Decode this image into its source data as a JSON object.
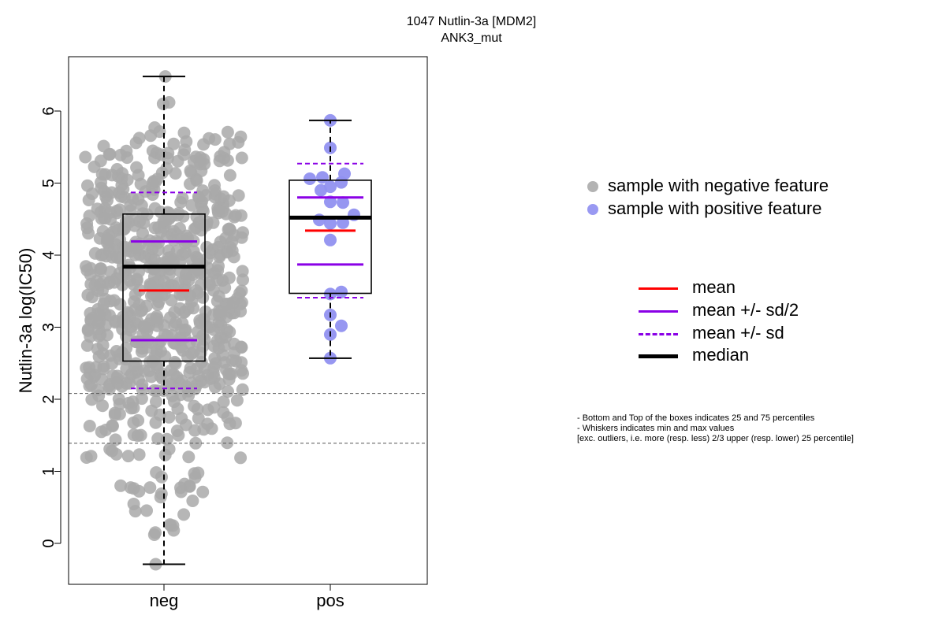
{
  "chart_data": {
    "type": "boxplot",
    "title": "1047 Nutlin-3a [MDM2]",
    "subtitle": "ANK3_mut",
    "xlabel": "",
    "ylabel": "Nutlin-3a log(IC50)",
    "ylim": [
      -0.57,
      7.05
    ],
    "yticks": [
      0,
      1,
      2,
      3,
      4,
      5,
      6
    ],
    "categories": [
      "neg",
      "pos"
    ],
    "reference_lines": [
      2.08,
      1.39
    ],
    "groups": [
      {
        "name": "neg",
        "color": "#a9a9a9",
        "min": -0.29,
        "q1": 2.53,
        "median": 3.84,
        "q3": 4.57,
        "max": 6.48,
        "mean": 3.51,
        "mean_minus_half_sd": 2.82,
        "mean_plus_half_sd": 4.19,
        "mean_minus_sd": 2.15,
        "mean_plus_sd": 4.87,
        "n": 750
      },
      {
        "name": "pos",
        "color": "#9191f0",
        "min": 2.57,
        "q1": 3.47,
        "median": 4.52,
        "q3": 5.04,
        "max": 5.87,
        "mean": 4.34,
        "mean_minus_half_sd": 3.87,
        "mean_plus_half_sd": 4.8,
        "mean_minus_sd": 3.41,
        "mean_plus_sd": 5.27,
        "points": [
          5.87,
          5.49,
          5.13,
          5.08,
          5.06,
          5.01,
          4.95,
          4.9,
          4.74,
          4.73,
          4.56,
          4.49,
          4.45,
          4.44,
          4.21,
          3.49,
          3.46,
          3.17,
          3.02,
          2.9,
          2.57
        ]
      }
    ]
  },
  "legend_points": [
    {
      "label": "sample with negative feature",
      "color": "#b3b3b3"
    },
    {
      "label": "sample with positive feature",
      "color": "#9999f2"
    }
  ],
  "legend_lines": [
    {
      "label": "mean",
      "color": "#ff0000",
      "style": "solid",
      "width": 3
    },
    {
      "label": "mean +/- sd/2",
      "color": "#8a00e6",
      "style": "solid",
      "width": 3
    },
    {
      "label": "mean +/- sd",
      "color": "#8a00e6",
      "style": "dashed",
      "width": 3
    },
    {
      "label": "median",
      "color": "#000000",
      "style": "solid",
      "width": 5
    }
  ],
  "notes": [
    "- Bottom and Top of the boxes indicates 25 and 75 percentiles",
    "- Whiskers indicates min and max values",
    "[exc. outliers, i.e. more (resp. less) 2/3 upper (resp. lower) 25 percentile]"
  ]
}
